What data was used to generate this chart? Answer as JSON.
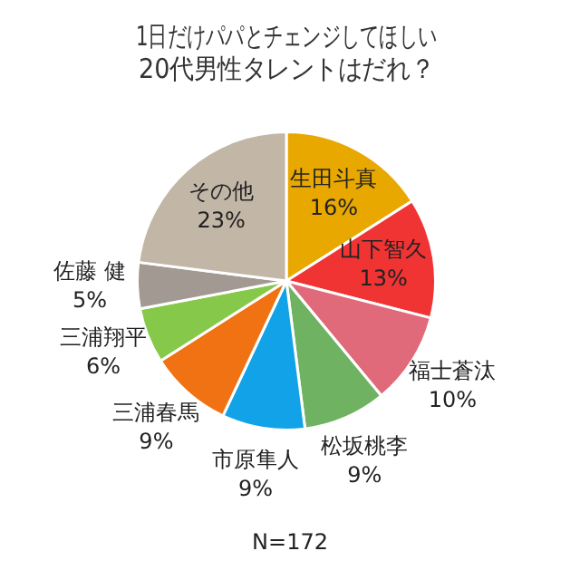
{
  "chart_data": {
    "type": "pie",
    "title": "1日だけパパとチェンジしてほしい\n20代男性タレントはだれ？",
    "categories": [
      "生田斗真",
      "山下智久",
      "福士蒼汰",
      "松坂桃李",
      "市原隼人",
      "三浦春馬",
      "三浦翔平",
      "佐藤 健",
      "その他"
    ],
    "values": [
      16,
      13,
      10,
      9,
      9,
      9,
      6,
      5,
      23
    ],
    "value_labels": [
      "16%",
      "13%",
      "10%",
      "9%",
      "9%",
      "9%",
      "6%",
      "5%",
      "23%"
    ],
    "colors": [
      "#e8a800",
      "#f03434",
      "#e06a7a",
      "#6eb262",
      "#12a2e8",
      "#f07212",
      "#86c84a",
      "#a29a92",
      "#c2b6a6"
    ],
    "annotations": [
      "N=172"
    ],
    "legend": false
  }
}
